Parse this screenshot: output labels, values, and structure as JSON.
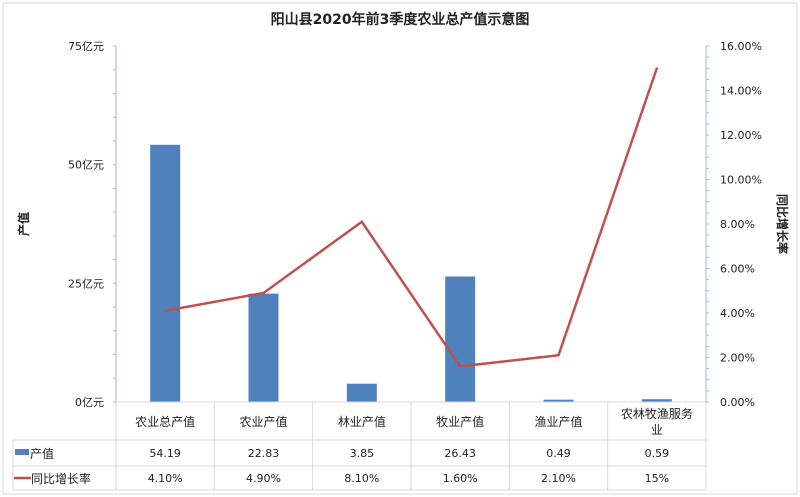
{
  "chart_data": {
    "type": "bar+line",
    "title": "阳山县2020年前3季度农业总产值示意图",
    "categories": [
      "农业总产值",
      "农业产值",
      "林业产值",
      "牧业产值",
      "渔业产值",
      "农林牧渔服务业"
    ],
    "y_left": {
      "label": "产值",
      "range": [
        0,
        75
      ],
      "ticks": [
        "0亿元",
        "25亿元",
        "50亿元",
        "75亿元"
      ],
      "tick_values": [
        0,
        25,
        50,
        75
      ]
    },
    "y_right": {
      "label": "同比增长率",
      "range": [
        0,
        16
      ],
      "ticks": [
        "0.00%",
        "2.00%",
        "4.00%",
        "6.00%",
        "8.00%",
        "10.00%",
        "12.00%",
        "14.00%",
        "16.00%"
      ],
      "tick_values": [
        0,
        2,
        4,
        6,
        8,
        10,
        12,
        14,
        16
      ]
    },
    "series": [
      {
        "name": "产值",
        "type": "bar",
        "axis": "left",
        "color": "#4f81bd",
        "values": [
          54.19,
          22.83,
          3.85,
          26.43,
          0.49,
          0.59
        ],
        "labels": [
          "54.19",
          "22.83",
          "3.85",
          "26.43",
          "0.49",
          "0.59"
        ]
      },
      {
        "name": "同比增长率",
        "type": "line",
        "axis": "right",
        "color": "#c0504d",
        "values": [
          4.1,
          4.9,
          8.1,
          1.6,
          2.1,
          15
        ],
        "labels": [
          "4.10%",
          "4.90%",
          "8.10%",
          "1.60%",
          "2.10%",
          "15%"
        ]
      }
    ],
    "legend": "data-table",
    "grid": false
  }
}
